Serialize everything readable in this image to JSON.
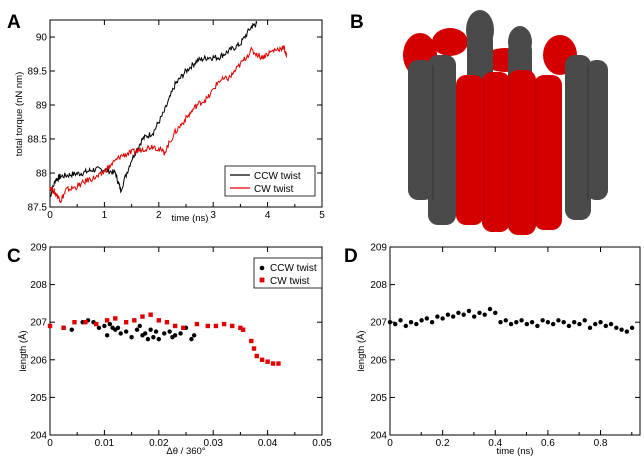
{
  "panels": {
    "A": {
      "letter": "A"
    },
    "B": {
      "letter": "B"
    },
    "C": {
      "letter": "C"
    },
    "D": {
      "letter": "D"
    }
  },
  "colors": {
    "ccw": "#000000",
    "cw": "#e00000",
    "gray": "#4a4a4a",
    "red": "#d40000"
  },
  "chart_data": [
    {
      "id": "A",
      "type": "line",
      "title": "",
      "xlabel": "time (ns)",
      "ylabel": "total torque (nN nm)",
      "xlim": [
        0,
        5
      ],
      "ylim": [
        87.5,
        90.25
      ],
      "xticks": [
        "0",
        "1",
        "2",
        "3",
        "4",
        "5"
      ],
      "yticks": [
        "87.5",
        "88",
        "88.5",
        "89",
        "89.5",
        "90"
      ],
      "legend_position": "bottom-right",
      "series": [
        {
          "name": "CCW twist",
          "color": "#000000",
          "x": [
            0,
            0.1,
            0.2,
            0.4,
            0.6,
            0.8,
            1.0,
            1.2,
            1.3,
            1.5,
            1.7,
            1.9,
            2.1,
            2.3,
            2.5,
            2.7,
            2.9,
            3.1,
            3.3,
            3.5,
            3.7,
            3.8
          ],
          "y": [
            87.65,
            87.9,
            87.95,
            87.98,
            88.0,
            88.05,
            88.05,
            88.0,
            87.75,
            88.2,
            88.5,
            88.6,
            88.9,
            89.3,
            89.5,
            89.65,
            89.7,
            89.7,
            89.8,
            89.9,
            90.15,
            90.2
          ]
        },
        {
          "name": "CW twist",
          "color": "#e00000",
          "x": [
            0,
            0.1,
            0.2,
            0.3,
            0.5,
            0.7,
            0.9,
            1.1,
            1.3,
            1.5,
            1.7,
            1.9,
            2.1,
            2.3,
            2.5,
            2.7,
            2.9,
            3.1,
            3.3,
            3.5,
            3.7,
            3.9,
            4.1,
            4.3,
            4.35
          ],
          "y": [
            87.8,
            87.7,
            87.6,
            87.75,
            87.8,
            87.9,
            87.95,
            88.1,
            88.25,
            88.3,
            88.35,
            88.4,
            88.3,
            88.6,
            88.8,
            89.0,
            89.1,
            89.35,
            89.4,
            89.6,
            89.8,
            89.7,
            89.8,
            89.85,
            89.7
          ]
        }
      ]
    },
    {
      "id": "C",
      "type": "scatter",
      "title": "",
      "xlabel": "Δθ / 360°",
      "ylabel": "length (Å)",
      "xlim": [
        0,
        0.05
      ],
      "ylim": [
        204,
        209
      ],
      "xticks": [
        "0",
        "0.01",
        "0.02",
        "0.03",
        "0.04",
        "0.05"
      ],
      "yticks": [
        "204",
        "205",
        "206",
        "207",
        "208",
        "209"
      ],
      "legend_position": "top-right",
      "series": [
        {
          "name": "CCW twist",
          "color": "#000000",
          "marker": "circle",
          "x": [
            0.0025,
            0.004,
            0.006,
            0.007,
            0.008,
            0.009,
            0.01,
            0.0105,
            0.011,
            0.0115,
            0.012,
            0.0125,
            0.013,
            0.014,
            0.015,
            0.016,
            0.0165,
            0.017,
            0.0175,
            0.018,
            0.0185,
            0.019,
            0.0195,
            0.02,
            0.021,
            0.022,
            0.0225,
            0.023,
            0.024,
            0.025,
            0.026,
            0.0265
          ],
          "y": [
            206.85,
            206.8,
            207.0,
            207.05,
            207.0,
            206.85,
            206.9,
            206.65,
            206.95,
            206.85,
            206.8,
            206.85,
            206.7,
            206.75,
            206.6,
            206.8,
            206.9,
            206.65,
            206.7,
            206.55,
            206.8,
            206.6,
            206.75,
            206.55,
            206.7,
            206.75,
            206.6,
            206.65,
            206.7,
            206.85,
            206.55,
            206.65
          ]
        },
        {
          "name": "CW twist",
          "color": "#e00000",
          "marker": "square",
          "x": [
            0.0,
            0.0025,
            0.0045,
            0.0065,
            0.0085,
            0.0105,
            0.012,
            0.014,
            0.0155,
            0.017,
            0.0185,
            0.02,
            0.0215,
            0.023,
            0.0245,
            0.027,
            0.029,
            0.0305,
            0.032,
            0.0335,
            0.035,
            0.0355,
            0.037,
            0.0375,
            0.038,
            0.039,
            0.04,
            0.041,
            0.042
          ],
          "y": [
            206.9,
            206.85,
            207.0,
            207.0,
            206.95,
            207.05,
            207.1,
            207.0,
            207.05,
            207.15,
            207.2,
            207.05,
            207.0,
            206.9,
            206.85,
            206.95,
            206.9,
            206.9,
            206.95,
            206.9,
            206.85,
            206.8,
            206.5,
            206.3,
            206.1,
            206.0,
            205.95,
            205.9,
            205.9
          ]
        }
      ]
    },
    {
      "id": "D",
      "type": "scatter",
      "title": "",
      "xlabel": "time (ns)",
      "ylabel": "length (Å)",
      "xlim": [
        0,
        0.95
      ],
      "ylim": [
        204,
        209
      ],
      "xticks": [
        "0",
        "0.2",
        "0.4",
        "0.6",
        "0.8"
      ],
      "yticks": [
        "204",
        "205",
        "206",
        "207",
        "208",
        "209"
      ],
      "legend_position": "none",
      "series": [
        {
          "name": "",
          "color": "#000000",
          "marker": "circle",
          "x": [
            0.0,
            0.02,
            0.04,
            0.06,
            0.08,
            0.1,
            0.12,
            0.14,
            0.16,
            0.18,
            0.2,
            0.22,
            0.24,
            0.26,
            0.28,
            0.3,
            0.32,
            0.34,
            0.36,
            0.38,
            0.4,
            0.42,
            0.44,
            0.46,
            0.48,
            0.5,
            0.52,
            0.54,
            0.56,
            0.58,
            0.6,
            0.62,
            0.64,
            0.66,
            0.68,
            0.7,
            0.72,
            0.74,
            0.76,
            0.78,
            0.8,
            0.82,
            0.84,
            0.86,
            0.88,
            0.9,
            0.92
          ],
          "y": [
            207.0,
            206.95,
            207.05,
            206.9,
            207.0,
            206.95,
            207.05,
            207.1,
            207.0,
            207.15,
            207.1,
            207.2,
            207.15,
            207.25,
            207.2,
            207.3,
            207.15,
            207.25,
            207.2,
            207.35,
            207.25,
            207.0,
            207.05,
            206.95,
            207.0,
            207.05,
            206.95,
            207.0,
            206.9,
            207.05,
            207.0,
            206.95,
            207.05,
            207.0,
            206.9,
            207.0,
            206.95,
            207.05,
            206.85,
            206.95,
            207.0,
            206.9,
            206.95,
            206.85,
            206.8,
            206.75,
            206.85
          ]
        }
      ]
    }
  ]
}
